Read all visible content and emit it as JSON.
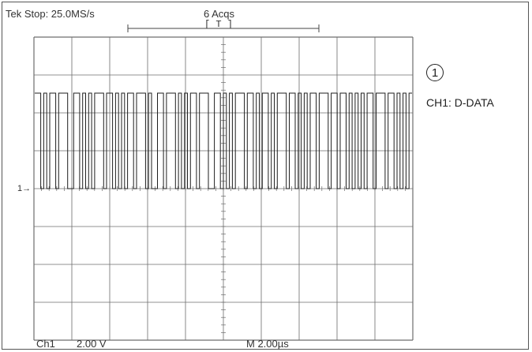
{
  "status": {
    "run_state": "Tek Stop: 25.0MS/s",
    "acquisitions": "6 Acqs",
    "trigger_label": "[  T  ]"
  },
  "readout": {
    "channel": "Ch1",
    "volts_per_div": "2.00 V",
    "time_per_div": "M 2.00µs"
  },
  "channel_marker": "1→",
  "annotation": {
    "number": "1",
    "label": "CH1: D-DATA"
  },
  "colors": {
    "grid": "#6d6d6d",
    "trace": "#1e1e1e",
    "background": "#ffffff"
  }
}
